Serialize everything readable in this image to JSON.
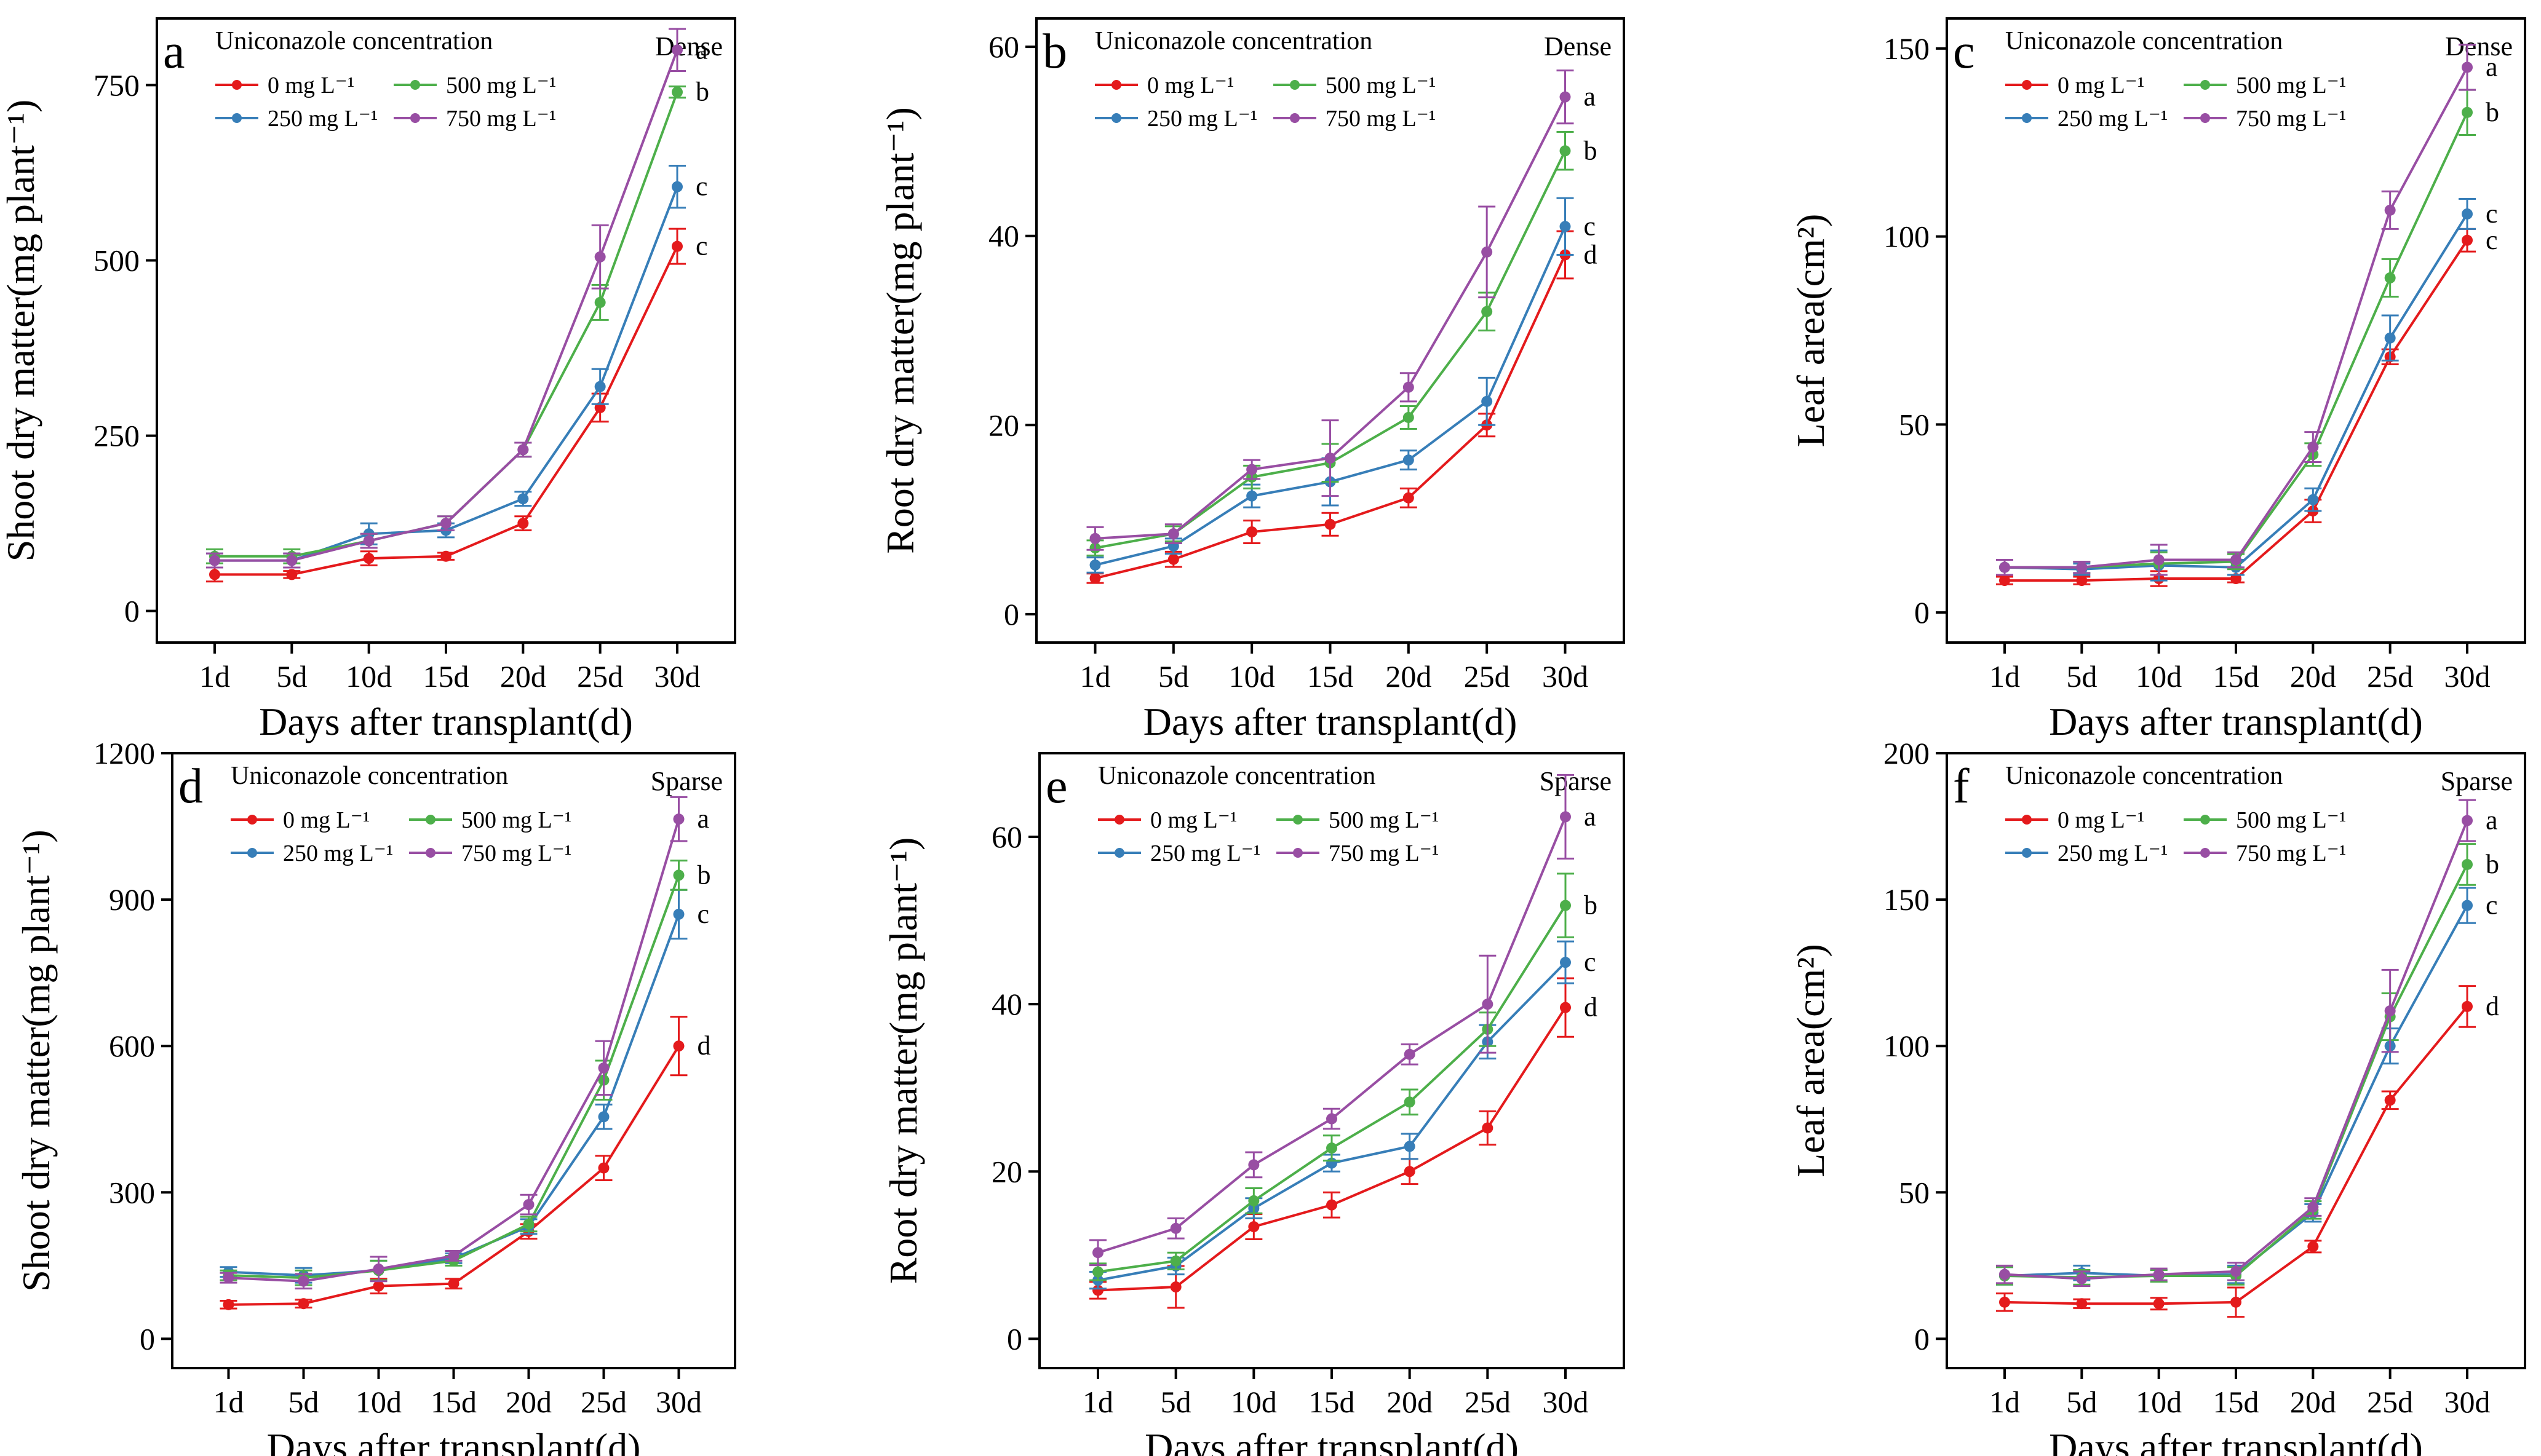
{
  "figure": {
    "legend_title": "Uniconazole concentration",
    "series_names": [
      "0 mg L⁻¹",
      "250 mg L⁻¹",
      "500 mg L⁻¹",
      "750 mg L⁻¹"
    ],
    "series_colors": [
      "#e41a1c",
      "#377eb8",
      "#4daf4a",
      "#984ea3"
    ],
    "categories": [
      "1d",
      "5d",
      "10d",
      "15d",
      "20d",
      "25d",
      "30d"
    ]
  },
  "chart_data": [
    {
      "type": "line",
      "letter": "a",
      "condition": "Dense",
      "title": "",
      "xlabel": "Days after transplant(d)",
      "ylabel": "Shoot dry matter(mg plant⁻¹)",
      "ylim": [
        -45,
        845
      ],
      "yticks": [
        0,
        250,
        500,
        750
      ],
      "categories": [
        "1d",
        "5d",
        "10d",
        "15d",
        "20d",
        "25d",
        "30d"
      ],
      "series": [
        {
          "name": "0 mg L⁻¹",
          "values": [
            52,
            52,
            75,
            78,
            125,
            290,
            520
          ],
          "errors": [
            10,
            5,
            10,
            5,
            10,
            20,
            25
          ]
        },
        {
          "name": "250 mg L⁻¹",
          "values": [
            72,
            72,
            110,
            115,
            160,
            320,
            605
          ],
          "errors": [
            10,
            10,
            15,
            10,
            10,
            25,
            30
          ]
        },
        {
          "name": "500 mg L⁻¹",
          "values": [
            78,
            78,
            100,
            125,
            230,
            440,
            740
          ],
          "errors": [
            10,
            10,
            10,
            10,
            10,
            25,
            8
          ]
        },
        {
          "name": "750 mg L⁻¹",
          "values": [
            72,
            72,
            100,
            125,
            230,
            505,
            800
          ],
          "errors": [
            10,
            10,
            10,
            10,
            10,
            45,
            30
          ]
        }
      ],
      "significance": [
        "c",
        "c",
        "b",
        "a"
      ]
    },
    {
      "type": "line",
      "letter": "b",
      "condition": "Dense",
      "title": "",
      "xlabel": "Days after transplant(d)",
      "ylabel": "Root dry matter(mg plant⁻¹)",
      "ylim": [
        -3,
        63
      ],
      "yticks": [
        0,
        20,
        40,
        60
      ],
      "categories": [
        "1d",
        "5d",
        "10d",
        "15d",
        "20d",
        "25d",
        "30d"
      ],
      "series": [
        {
          "name": "0 mg L⁻¹",
          "values": [
            3.8,
            5.8,
            8.7,
            9.5,
            12.3,
            20.0,
            38.0
          ],
          "errors": [
            0.5,
            0.8,
            1.2,
            1.2,
            1.0,
            1.2,
            2.5
          ]
        },
        {
          "name": "250 mg L⁻¹",
          "values": [
            5.2,
            7.2,
            12.5,
            14.0,
            16.3,
            22.5,
            41.0
          ],
          "errors": [
            0.8,
            0.8,
            1.2,
            2.5,
            1.0,
            2.5,
            3.0
          ]
        },
        {
          "name": "500 mg L⁻¹",
          "values": [
            7.0,
            8.5,
            14.5,
            16.0,
            20.8,
            32.0,
            49.0
          ],
          "errors": [
            0.8,
            0.8,
            1.2,
            2.0,
            1.2,
            2.0,
            2.0
          ]
        },
        {
          "name": "750 mg L⁻¹",
          "values": [
            8.0,
            8.5,
            15.3,
            16.5,
            24.0,
            38.3,
            54.7
          ],
          "errors": [
            1.2,
            1.0,
            1.0,
            4.0,
            1.5,
            4.8,
            2.8
          ]
        }
      ],
      "significance": [
        "d",
        "c",
        "b",
        "a"
      ]
    },
    {
      "type": "line",
      "letter": "c",
      "condition": "Dense",
      "title": "",
      "xlabel": "Days after transplant(d)",
      "ylabel": "Leaf area(cm²)",
      "ylim": [
        -8,
        158
      ],
      "yticks": [
        0,
        50,
        100,
        150
      ],
      "categories": [
        "1d",
        "5d",
        "10d",
        "15d",
        "20d",
        "25d",
        "30d"
      ],
      "series": [
        {
          "name": "0 mg L⁻¹",
          "values": [
            8.5,
            8.5,
            9.0,
            9.0,
            27.0,
            68.0,
            99.0
          ],
          "errors": [
            1.0,
            1.0,
            2.0,
            1.0,
            3.0,
            2.0,
            3.0
          ]
        },
        {
          "name": "250 mg L⁻¹",
          "values": [
            12.0,
            11.5,
            12.5,
            12.0,
            30.0,
            73.0,
            106.0
          ],
          "errors": [
            2.0,
            1.5,
            4.0,
            2.0,
            3.0,
            6.0,
            4.0
          ]
        },
        {
          "name": "500 mg L⁻¹",
          "values": [
            12.0,
            12.0,
            13.0,
            13.5,
            42.0,
            89.0,
            133.0
          ],
          "errors": [
            2.0,
            1.5,
            3.0,
            2.0,
            3.0,
            5.0,
            6.0
          ]
        },
        {
          "name": "750 mg L⁻¹",
          "values": [
            12.0,
            12.0,
            14.0,
            14.0,
            44.0,
            107.0,
            145.0
          ],
          "errors": [
            2.0,
            1.5,
            4.0,
            2.0,
            4.0,
            5.0,
            6.0
          ]
        }
      ],
      "significance": [
        "c",
        "c",
        "b",
        "a"
      ]
    },
    {
      "type": "line",
      "letter": "d",
      "condition": "Sparse",
      "title": "",
      "xlabel": "Days after transplant(d)",
      "ylabel": "Shoot dry matter(mg plant⁻¹)",
      "ylim": [
        -60,
        1200
      ],
      "yticks": [
        0,
        300,
        600,
        900,
        1200
      ],
      "categories": [
        "1d",
        "5d",
        "10d",
        "15d",
        "20d",
        "25d",
        "30d"
      ],
      "series": [
        {
          "name": "0 mg L⁻¹",
          "values": [
            70,
            72,
            108,
            113,
            220,
            350,
            600
          ],
          "errors": [
            8,
            8,
            15,
            10,
            15,
            25,
            60
          ]
        },
        {
          "name": "250 mg L⁻¹",
          "values": [
            137,
            130,
            140,
            165,
            230,
            455,
            870
          ],
          "errors": [
            10,
            15,
            20,
            10,
            15,
            25,
            50
          ]
        },
        {
          "name": "500 mg L⁻¹",
          "values": [
            130,
            125,
            140,
            160,
            235,
            530,
            950
          ],
          "errors": [
            10,
            15,
            20,
            10,
            15,
            40,
            30
          ]
        },
        {
          "name": "750 mg L⁻¹",
          "values": [
            125,
            118,
            143,
            170,
            275,
            555,
            1065
          ],
          "errors": [
            10,
            15,
            25,
            10,
            20,
            55,
            45
          ]
        }
      ],
      "significance": [
        "d",
        "c",
        "b",
        "a"
      ]
    },
    {
      "type": "line",
      "letter": "e",
      "condition": "Sparse",
      "title": "",
      "xlabel": "Days after transplant(d)",
      "ylabel": "Root dry matter(mg plant⁻¹)",
      "ylim": [
        -3.5,
        70
      ],
      "yticks": [
        0,
        20,
        40,
        60
      ],
      "categories": [
        "1d",
        "5d",
        "10d",
        "15d",
        "20d",
        "25d",
        "30d"
      ],
      "series": [
        {
          "name": "0 mg L⁻¹",
          "values": [
            5.8,
            6.2,
            13.4,
            16.0,
            20.0,
            25.2,
            39.6
          ],
          "errors": [
            1.0,
            2.5,
            1.5,
            1.5,
            1.5,
            2.0,
            3.5
          ]
        },
        {
          "name": "250 mg L⁻¹",
          "values": [
            7.0,
            8.7,
            15.6,
            21.0,
            23.0,
            35.5,
            45.0
          ],
          "errors": [
            1.0,
            1.0,
            1.2,
            1.0,
            1.5,
            2.0,
            2.5
          ]
        },
        {
          "name": "500 mg L⁻¹",
          "values": [
            8.0,
            9.3,
            16.5,
            22.8,
            28.3,
            37.0,
            51.8
          ],
          "errors": [
            1.0,
            1.0,
            1.5,
            1.5,
            1.5,
            2.0,
            3.8
          ]
        },
        {
          "name": "750 mg L⁻¹",
          "values": [
            10.3,
            13.2,
            20.8,
            26.3,
            34.0,
            40.0,
            62.4
          ],
          "errors": [
            1.5,
            1.2,
            1.5,
            1.2,
            1.2,
            5.8,
            5.0
          ]
        }
      ],
      "significance": [
        "d",
        "c",
        "b",
        "a"
      ]
    },
    {
      "type": "line",
      "letter": "f",
      "condition": "Sparse",
      "title": "",
      "xlabel": "Days after transplant(d)",
      "ylabel": "Leaf area(cm²)",
      "ylim": [
        -10,
        200
      ],
      "yticks": [
        0,
        50,
        100,
        150,
        200
      ],
      "categories": [
        "1d",
        "5d",
        "10d",
        "15d",
        "20d",
        "25d",
        "30d"
      ],
      "series": [
        {
          "name": "0 mg L⁻¹",
          "values": [
            12.5,
            12.0,
            12.0,
            12.5,
            31.5,
            81.5,
            113.5
          ],
          "errors": [
            3.0,
            1.5,
            2.0,
            5.0,
            2.0,
            3.0,
            7.0
          ]
        },
        {
          "name": "250 mg L⁻¹",
          "values": [
            21.5,
            22.5,
            21.5,
            22.0,
            43.0,
            100.0,
            148.0
          ],
          "errors": [
            3.0,
            2.5,
            2.0,
            3.0,
            3.0,
            6.0,
            6.0
          ]
        },
        {
          "name": "500 mg L⁻¹",
          "values": [
            21.5,
            21.0,
            21.5,
            21.5,
            44.0,
            110.0,
            162.0
          ],
          "errors": [
            3.0,
            2.5,
            2.0,
            3.0,
            3.0,
            8.0,
            7.0
          ]
        },
        {
          "name": "750 mg L⁻¹",
          "values": [
            22.0,
            20.5,
            22.0,
            23.0,
            45.0,
            112.0,
            177.0
          ],
          "errors": [
            3.0,
            2.5,
            2.0,
            3.0,
            3.0,
            14.0,
            7.0
          ]
        }
      ],
      "significance": [
        "d",
        "c",
        "b",
        "a"
      ]
    }
  ]
}
